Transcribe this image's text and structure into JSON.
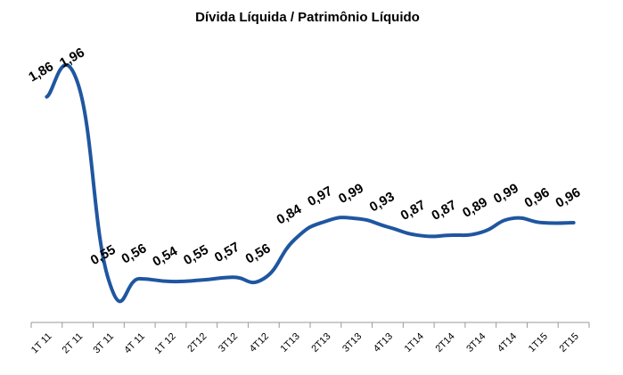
{
  "chart_data": {
    "type": "line",
    "title": "Dívida Líquida / Patrimônio Líquido",
    "categories": [
      "1T 11",
      "2T 11",
      "3T 11",
      "4T 11",
      "1T 12",
      "2T12",
      "3T12",
      "4T12",
      "1T13",
      "2T13",
      "3T13",
      "4T13",
      "1T14",
      "2T14",
      "3T14",
      "4T14",
      "1T15",
      "2T15"
    ],
    "series": [
      {
        "name": "Dívida Líquida / Patrimônio Líquido",
        "color": "#1f56a0",
        "values": [
          1.86,
          1.96,
          0.55,
          0.56,
          0.54,
          0.55,
          0.57,
          0.56,
          0.84,
          0.97,
          0.99,
          0.93,
          0.87,
          0.87,
          0.89,
          0.99,
          0.96,
          0.96
        ],
        "value_labels": [
          "1,86",
          "1,96",
          "0,55",
          "0,56",
          "0,54",
          "0,55",
          "0,57",
          "0,56",
          "0,84",
          "0,97",
          "0,99",
          "0,93",
          "0,87",
          "0,87",
          "0,89",
          "0,99",
          "0,96",
          "0,96"
        ]
      }
    ]
  }
}
